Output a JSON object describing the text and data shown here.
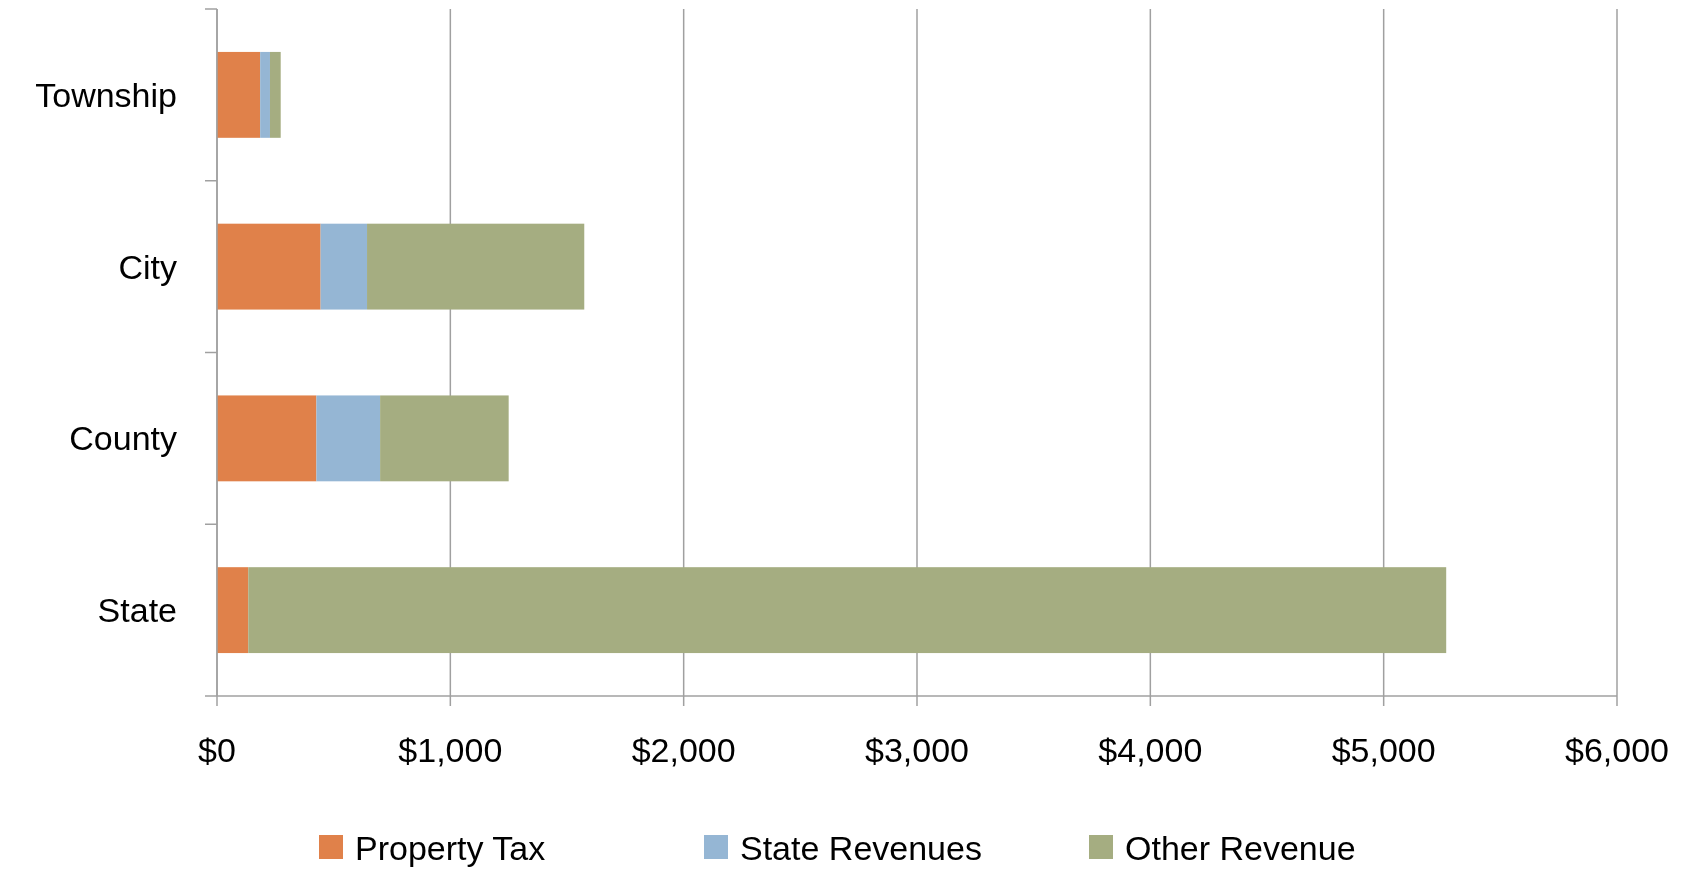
{
  "chart_data": {
    "type": "bar",
    "orientation": "horizontal",
    "stacked": true,
    "categories": [
      "Township",
      "City",
      "County",
      "State"
    ],
    "series": [
      {
        "name": "Property Tax",
        "color": "#e0814a",
        "values": [
          185,
          444,
          426,
          134
        ]
      },
      {
        "name": "State Revenues",
        "color": "#95b6d4",
        "values": [
          42,
          199,
          273,
          0
        ]
      },
      {
        "name": "Other Revenue",
        "color": "#a5ad81",
        "values": [
          46,
          931,
          551,
          5134
        ]
      }
    ],
    "xlim": [
      0,
      6000
    ],
    "xticks": [
      {
        "value": 0,
        "label": "$0"
      },
      {
        "value": 1000,
        "label": "$1,000"
      },
      {
        "value": 2000,
        "label": "$2,000"
      },
      {
        "value": 3000,
        "label": "$3,000"
      },
      {
        "value": 4000,
        "label": "$4,000"
      },
      {
        "value": 5000,
        "label": "$5,000"
      },
      {
        "value": 6000,
        "label": "$6,000"
      }
    ],
    "grid": "x",
    "legend": "bottom"
  }
}
